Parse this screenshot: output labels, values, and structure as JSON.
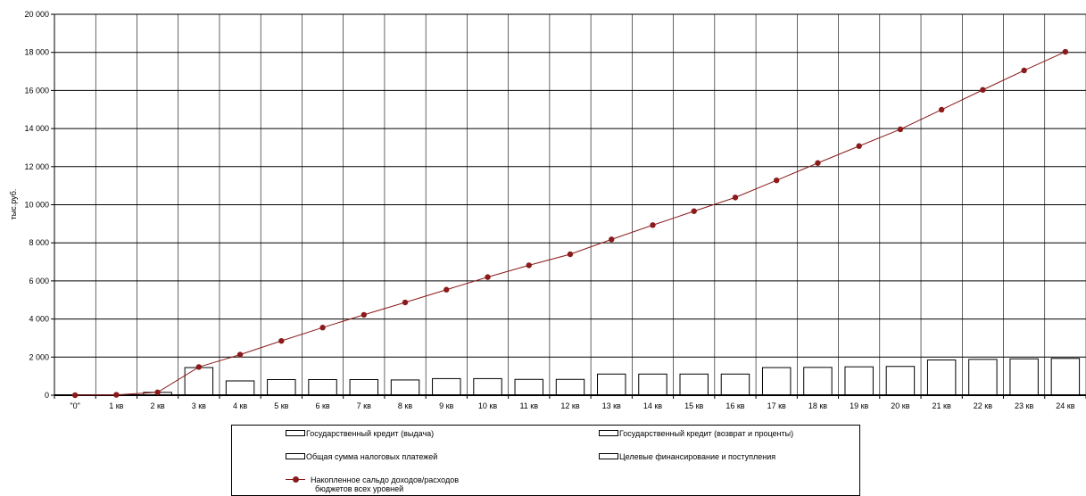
{
  "chart_data": {
    "type": "bar",
    "title": "",
    "xlabel": "",
    "ylabel": "тыс.руб.",
    "ylim": [
      0,
      20000
    ],
    "yticks": [
      "0",
      "2 000",
      "4 000",
      "6 000",
      "8 000",
      "10 000",
      "12 000",
      "14 000",
      "16 000",
      "18 000",
      "20 000"
    ],
    "grid": true,
    "legend_position": "bottom",
    "categories": [
      "\"0\"",
      "1 кв",
      "2 кв",
      "3 кв",
      "4 кв",
      "5 кв",
      "6 кв",
      "7 кв",
      "8 кв",
      "9 кв",
      "10 кв",
      "11 кв",
      "12 кв",
      "13 кв",
      "14 кв",
      "15 кв",
      "16 кв",
      "17 кв",
      "18 кв",
      "19 кв",
      "20 кв",
      "21 кв",
      "22 кв",
      "23 кв",
      "24 кв"
    ],
    "series": [
      {
        "name": "Государственный кредит (выдача)",
        "kind": "bar",
        "values": [
          0,
          0,
          0,
          0,
          0,
          0,
          0,
          0,
          0,
          0,
          0,
          0,
          0,
          0,
          0,
          0,
          0,
          0,
          0,
          0,
          0,
          0,
          0,
          0,
          0
        ]
      },
      {
        "name": "Государственный кредит (возврат и проценты)",
        "kind": "bar",
        "values": [
          0,
          0,
          0,
          0,
          0,
          0,
          0,
          0,
          0,
          0,
          0,
          0,
          0,
          0,
          0,
          0,
          0,
          0,
          0,
          0,
          0,
          0,
          0,
          0,
          0
        ]
      },
      {
        "name": "Общая сумма налоговых платежей",
        "kind": "bar",
        "values": [
          0,
          20,
          150,
          1450,
          750,
          820,
          820,
          820,
          800,
          870,
          870,
          830,
          830,
          1110,
          1110,
          1110,
          1110,
          1450,
          1460,
          1490,
          1510,
          1850,
          1880,
          1910,
          1930
        ]
      },
      {
        "name": "Целевые финансирование и поступления",
        "kind": "bar",
        "values": [
          0,
          0,
          0,
          0,
          0,
          0,
          0,
          0,
          0,
          0,
          0,
          0,
          0,
          0,
          0,
          0,
          0,
          0,
          0,
          0,
          0,
          0,
          0,
          0,
          0
        ]
      },
      {
        "name": "Накопленное сальдо доходов/расходов бюджетов всех уровней",
        "kind": "line",
        "color": "#8b1a1a",
        "values": [
          0,
          20,
          150,
          1480,
          2130,
          2850,
          3550,
          4220,
          4870,
          5540,
          6200,
          6820,
          7400,
          8180,
          8930,
          9660,
          10380,
          11280,
          12190,
          13080,
          13960,
          14990,
          16030,
          17050,
          18030
        ]
      }
    ]
  },
  "legend": {
    "items": [
      "Государственный кредит (выдача)",
      "Государственный кредит (возврат и проценты)",
      "Общая сумма налоговых платежей",
      "Целевые финансирование и поступления"
    ],
    "line_item_line1": "Накопленное сальдо доходов/расходов",
    "line_item_line2": "бюджетов всех уровней"
  },
  "colors": {
    "line": "#8b1a1a",
    "bar_fill": "#ffffff",
    "bar_stroke": "#000000",
    "grid": "#000000"
  }
}
